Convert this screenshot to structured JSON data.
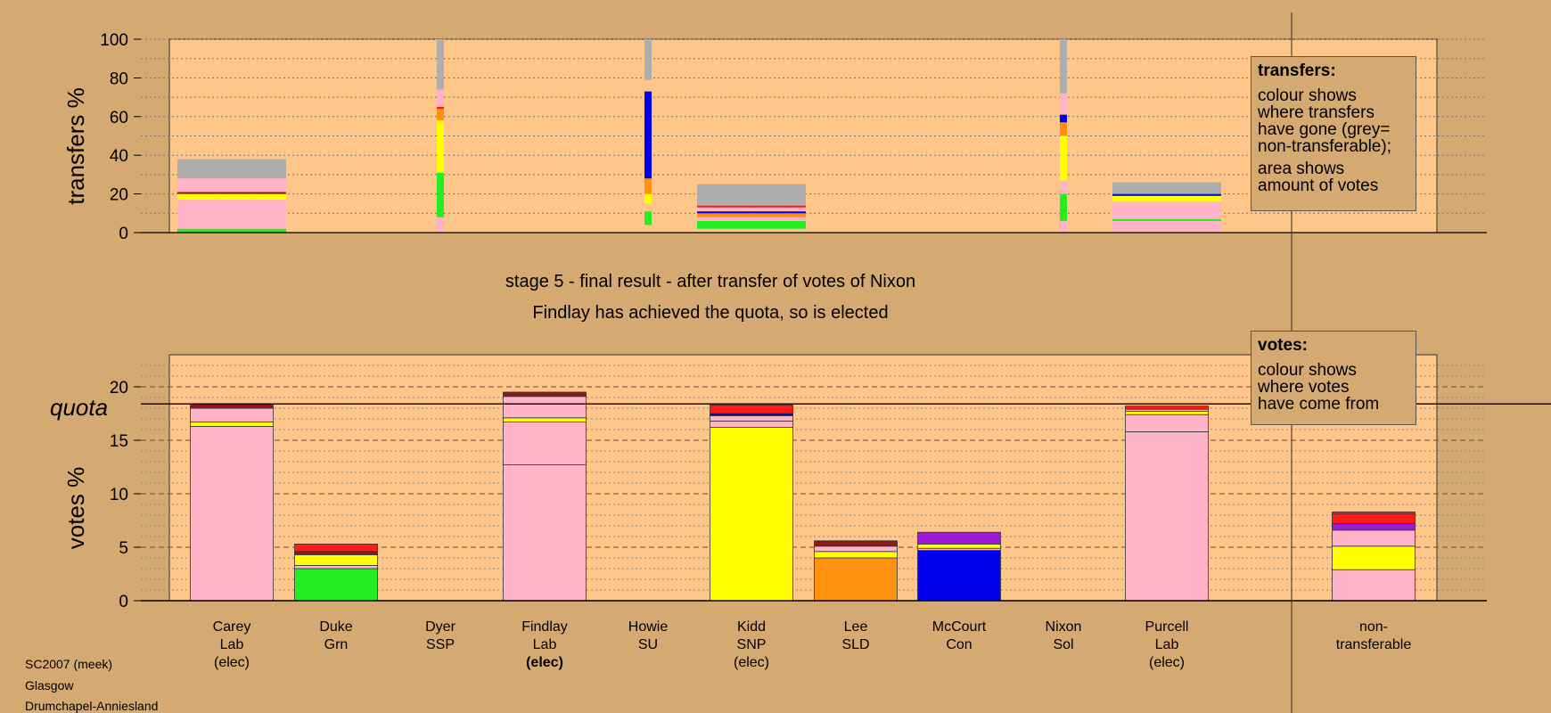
{
  "colors": {
    "background": "#d4aa72",
    "panel": "#fec688",
    "Lab": "#ffb2c8",
    "Grn": "#22ee22",
    "SSP": "#ff8c8c",
    "SNP": "#ffff00",
    "SLD": "#ff9010",
    "Con": "#0000ee",
    "Sol": "#ff1a1a",
    "SU": "#8b1a1a",
    "Other": "#9a1ad6",
    "nontransferable": "#aeaeae"
  },
  "labels": {
    "transfers_ylabel": "transfers %",
    "votes_ylabel": "votes %",
    "quota_label": "quota",
    "stage_line1": "stage 5 - final result - after transfer of votes of Nixon",
    "stage_line2": "Findlay has achieved the quota, so is elected"
  },
  "legend_transfers": {
    "title": "transfers:",
    "line1": "colour shows",
    "line2": "where transfers",
    "line3": "have gone (grey=",
    "line4": "non-transferable);",
    "line5": "area shows",
    "line6": "amount of votes"
  },
  "legend_votes": {
    "title": "votes:",
    "line1": "colour shows",
    "line2": "where votes",
    "line3": "have come from"
  },
  "footer": {
    "line1": "SC2007 (meek)",
    "line2": "Glasgow",
    "line3": "Drumchapel-Anniesland"
  },
  "chart_data": [
    {
      "type": "bar",
      "title": "",
      "ylabel": "transfers %",
      "ylim": [
        0,
        100
      ],
      "yticks": [
        0,
        20,
        40,
        60,
        80,
        100
      ],
      "grid": true,
      "note": "stacked transfer composition per candidate; width proportional to votes transferred",
      "columns": [
        {
          "candidate": "Carey",
          "width": "wide",
          "segments": [
            {
              "party": "Grn",
              "from": 0,
              "to": 2
            },
            {
              "party": "Lab",
              "from": 2,
              "to": 17
            },
            {
              "party": "SNP",
              "from": 17,
              "to": 20
            },
            {
              "party": "SU",
              "from": 20,
              "to": 21
            },
            {
              "party": "Lab",
              "from": 21,
              "to": 28
            },
            {
              "party": "nontransferable",
              "from": 28,
              "to": 38
            }
          ]
        },
        {
          "candidate": "Dyer",
          "width": "narrow",
          "segments": [
            {
              "party": "Lab",
              "from": 0,
              "to": 8
            },
            {
              "party": "Grn",
              "from": 8,
              "to": 31
            },
            {
              "party": "SNP",
              "from": 31,
              "to": 58
            },
            {
              "party": "SLD",
              "from": 58,
              "to": 64
            },
            {
              "party": "Sol",
              "from": 64,
              "to": 65
            },
            {
              "party": "Lab",
              "from": 65,
              "to": 74
            },
            {
              "party": "nontransferable",
              "from": 74,
              "to": 100
            }
          ]
        },
        {
          "candidate": "Howie",
          "width": "narrow",
          "segments": [
            {
              "party": "Grn",
              "from": 4,
              "to": 11
            },
            {
              "party": "SNP",
              "from": 15,
              "to": 20
            },
            {
              "party": "SLD",
              "from": 20,
              "to": 28
            },
            {
              "party": "Con",
              "from": 28,
              "to": 73
            },
            {
              "party": "nontransferable",
              "from": 79,
              "to": 100
            }
          ]
        },
        {
          "candidate": "Kidd",
          "width": "wide",
          "segments": [
            {
              "party": "Grn",
              "from": 2,
              "to": 6
            },
            {
              "party": "Lab",
              "from": 6,
              "to": 8
            },
            {
              "party": "SLD",
              "from": 8,
              "to": 10
            },
            {
              "party": "Con",
              "from": 10,
              "to": 11
            },
            {
              "party": "Lab",
              "from": 11,
              "to": 13
            },
            {
              "party": "Sol",
              "from": 13,
              "to": 14
            },
            {
              "party": "nontransferable",
              "from": 14,
              "to": 25
            }
          ]
        },
        {
          "candidate": "Nixon",
          "width": "narrow",
          "segments": [
            {
              "party": "Lab",
              "from": 0,
              "to": 6
            },
            {
              "party": "Grn",
              "from": 6,
              "to": 20
            },
            {
              "party": "Lab",
              "from": 20,
              "to": 27
            },
            {
              "party": "SNP",
              "from": 27,
              "to": 50
            },
            {
              "party": "SLD",
              "from": 50,
              "to": 57
            },
            {
              "party": "Con",
              "from": 57,
              "to": 61
            },
            {
              "party": "Lab",
              "from": 61,
              "to": 72
            },
            {
              "party": "nontransferable",
              "from": 72,
              "to": 100
            }
          ]
        },
        {
          "candidate": "Purcell",
          "width": "wide",
          "segments": [
            {
              "party": "Lab",
              "from": 0,
              "to": 6
            },
            {
              "party": "Grn",
              "from": 6,
              "to": 7
            },
            {
              "party": "Lab",
              "from": 7,
              "to": 16
            },
            {
              "party": "SNP",
              "from": 16,
              "to": 19
            },
            {
              "party": "Con",
              "from": 19,
              "to": 20
            },
            {
              "party": "nontransferable",
              "from": 20,
              "to": 26
            }
          ]
        }
      ]
    },
    {
      "type": "bar",
      "title": "",
      "ylabel": "votes %",
      "ylim": [
        0,
        23
      ],
      "yticks": [
        0,
        5,
        10,
        15,
        20
      ],
      "quota": 18.4,
      "grid": true,
      "candidates": [
        {
          "name": "Carey",
          "party": "Lab",
          "status": "(elec)",
          "status_bold": false,
          "segments": [
            {
              "party": "Lab",
              "value": 16.3
            },
            {
              "party": "SNP",
              "value": 0.4
            },
            {
              "party": "Lab",
              "value": 1.3
            },
            {
              "party": "SU",
              "value": 0.4
            }
          ]
        },
        {
          "name": "Duke",
          "party": "Grn",
          "status": "",
          "status_bold": false,
          "segments": [
            {
              "party": "Grn",
              "value": 3.0
            },
            {
              "party": "Lab",
              "value": 0.3
            },
            {
              "party": "SNP",
              "value": 1.0
            },
            {
              "party": "SU",
              "value": 0.3
            },
            {
              "party": "Sol",
              "value": 0.7
            }
          ]
        },
        {
          "name": "Dyer",
          "party": "SSP",
          "status": "",
          "status_bold": false,
          "segments": []
        },
        {
          "name": "Findlay",
          "party": "Lab",
          "status": "(elec)",
          "status_bold": true,
          "segments": [
            {
              "party": "Lab",
              "value": 12.7
            },
            {
              "party": "Lab",
              "value": 4.0
            },
            {
              "party": "SNP",
              "value": 0.4
            },
            {
              "party": "Lab",
              "value": 2.0
            },
            {
              "party": "SU",
              "value": 0.4
            }
          ]
        },
        {
          "name": "Howie",
          "party": "SU",
          "status": "",
          "status_bold": false,
          "segments": []
        },
        {
          "name": "Kidd",
          "party": "SNP",
          "status": "(elec)",
          "status_bold": false,
          "segments": [
            {
              "party": "SNP",
              "value": 16.2
            },
            {
              "party": "Lab",
              "value": 0.6
            },
            {
              "party": "Lab",
              "value": 0.5
            },
            {
              "party": "Con",
              "value": 0.2
            },
            {
              "party": "Sol",
              "value": 0.8
            }
          ]
        },
        {
          "name": "Lee",
          "party": "SLD",
          "status": "",
          "status_bold": false,
          "segments": [
            {
              "party": "SLD",
              "value": 4.0
            },
            {
              "party": "SNP",
              "value": 0.6
            },
            {
              "party": "Lab",
              "value": 0.5
            },
            {
              "party": "SU",
              "value": 0.5
            }
          ]
        },
        {
          "name": "McCourt",
          "party": "Con",
          "status": "",
          "status_bold": false,
          "segments": [
            {
              "party": "Con",
              "value": 4.7
            },
            {
              "party": "Lab",
              "value": 0.2
            },
            {
              "party": "SNP",
              "value": 0.4
            },
            {
              "party": "Other",
              "value": 1.1
            }
          ]
        },
        {
          "name": "Nixon",
          "party": "Sol",
          "status": "",
          "status_bold": false,
          "segments": []
        },
        {
          "name": "Purcell",
          "party": "Lab",
          "status": "(elec)",
          "status_bold": false,
          "segments": [
            {
              "party": "Lab",
              "value": 15.8
            },
            {
              "party": "Lab",
              "value": 1.6
            },
            {
              "party": "SNP",
              "value": 0.3
            },
            {
              "party": "Lab",
              "value": 0.2
            },
            {
              "party": "Sol",
              "value": 0.3
            }
          ]
        },
        {
          "name": "non-",
          "party": "transferable",
          "status": "",
          "status_bold": false,
          "segments": [
            {
              "party": "Lab",
              "value": 2.9
            },
            {
              "party": "SNP",
              "value": 2.2
            },
            {
              "party": "Lab",
              "value": 1.5
            },
            {
              "party": "Other",
              "value": 0.6
            },
            {
              "party": "Sol",
              "value": 0.9
            },
            {
              "party": "Sol",
              "value": 0.2
            }
          ]
        }
      ]
    }
  ]
}
